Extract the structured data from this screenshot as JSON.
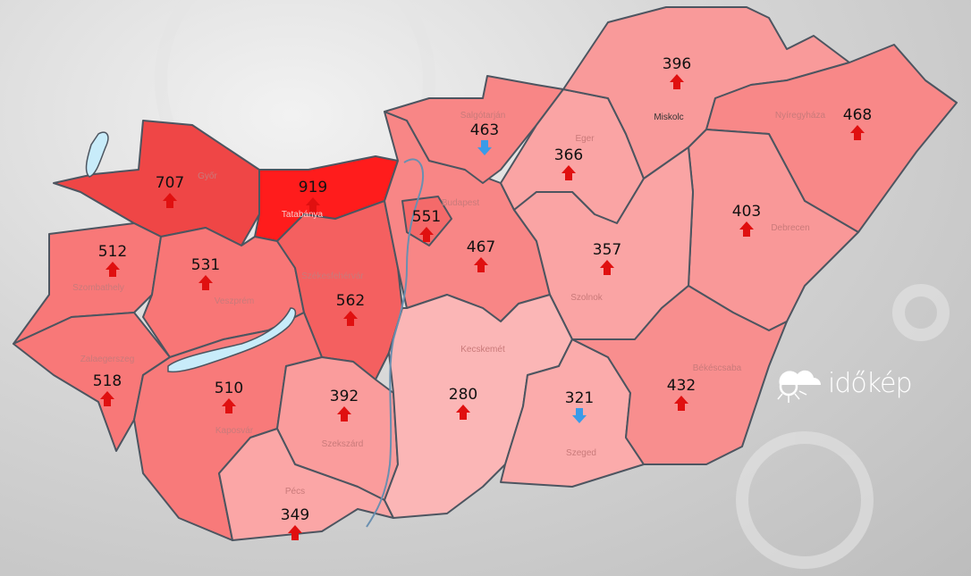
{
  "counties": [
    {
      "id": "gyor",
      "city": "Győr",
      "value": "707",
      "trend": "up",
      "color": "#ef4646"
    },
    {
      "id": "komarom",
      "city": "Tatabánya",
      "value": "919",
      "trend": "up",
      "color": "#ff1c1c"
    },
    {
      "id": "vas",
      "city": "Szombathely",
      "value": "512",
      "trend": "up",
      "color": "#f87878"
    },
    {
      "id": "veszprem",
      "city": "Veszprém",
      "value": "531",
      "trend": "up",
      "color": "#f87676"
    },
    {
      "id": "fejer",
      "city": "Székesfehérvár",
      "value": "562",
      "trend": "up",
      "color": "#f46060"
    },
    {
      "id": "zala",
      "city": "Zalaegerszeg",
      "value": "518",
      "trend": "up",
      "color": "#f87878"
    },
    {
      "id": "somogy",
      "city": "Kaposvár",
      "value": "510",
      "trend": "up",
      "color": "#f87a7a"
    },
    {
      "id": "tolna",
      "city": "Szekszárd",
      "value": "392",
      "trend": "up",
      "color": "#fa9c9c"
    },
    {
      "id": "baranya",
      "city": "Pécs",
      "value": "349",
      "trend": "up",
      "color": "#fba6a6"
    },
    {
      "id": "pest",
      "city": "",
      "value": "467",
      "trend": "up",
      "color": "#f88686"
    },
    {
      "id": "budapest",
      "city": "Budapest",
      "value": "551",
      "trend": "up",
      "color": "#f46a6a"
    },
    {
      "id": "nograd",
      "city": "Salgótarján",
      "value": "463",
      "trend": "down",
      "color": "#f88686"
    },
    {
      "id": "heves",
      "city": "Eger",
      "value": "366",
      "trend": "up",
      "color": "#faa4a4"
    },
    {
      "id": "baz",
      "city": "Miskolc",
      "value": "396",
      "trend": "up",
      "color": "#f99a9a"
    },
    {
      "id": "szabolcs",
      "city": "Nyíregyháza",
      "value": "468",
      "trend": "up",
      "color": "#f88888"
    },
    {
      "id": "hajdu",
      "city": "Debrecen",
      "value": "403",
      "trend": "up",
      "color": "#f99898"
    },
    {
      "id": "szolnok",
      "city": "Szolnok",
      "value": "357",
      "trend": "up",
      "color": "#faa4a4"
    },
    {
      "id": "bacs",
      "city": "Kecskemét",
      "value": "280",
      "trend": "up",
      "color": "#fbb6b6"
    },
    {
      "id": "csongrad",
      "city": "Szeged",
      "value": "321",
      "trend": "down",
      "color": "#fbabab"
    },
    {
      "id": "bekes",
      "city": "Békéscsaba",
      "value": "432",
      "trend": "up",
      "color": "#f88e8e"
    }
  ],
  "colors": {
    "up_arrow": "#e01010",
    "down_arrow": "#3a9be8",
    "water": "#c8ecfa",
    "border": "#4d5560"
  },
  "logo": {
    "text": "időkép"
  }
}
